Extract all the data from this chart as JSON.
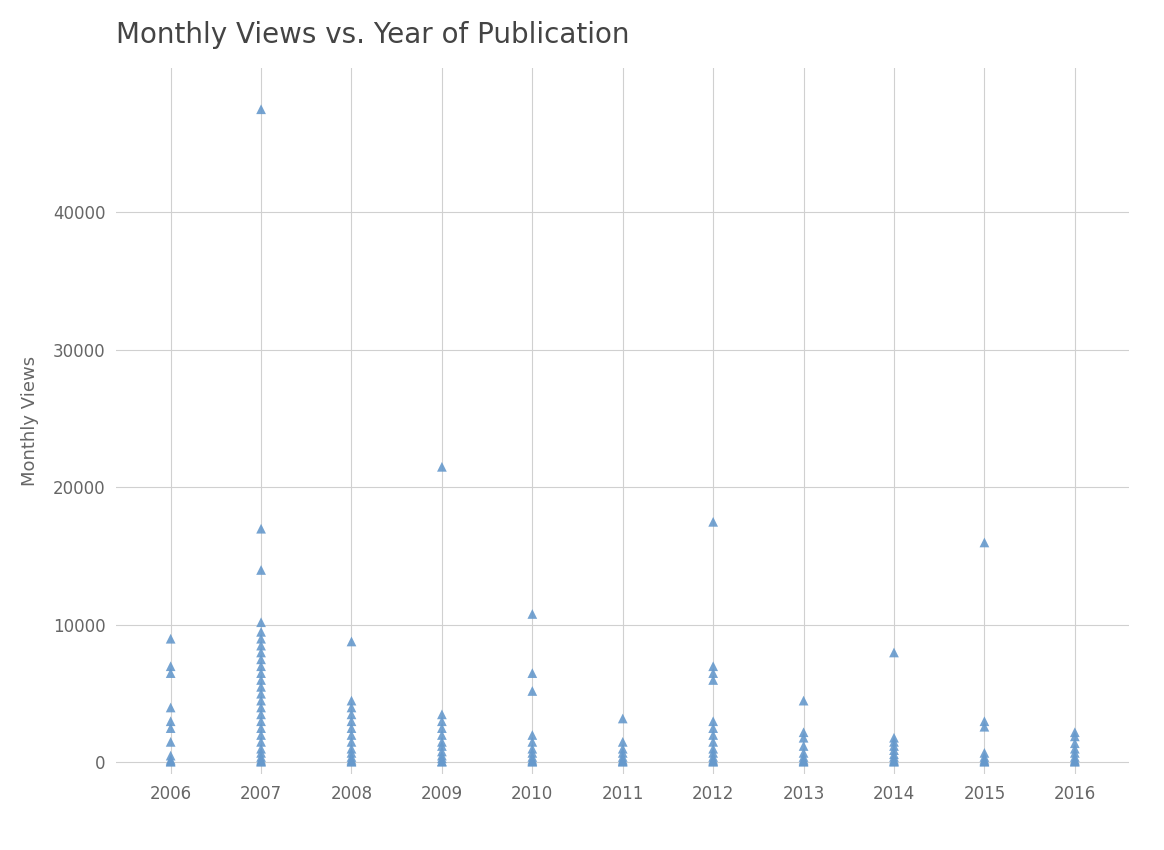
{
  "title": "Monthly Views vs. Year of Publication",
  "xlabel": "",
  "ylabel": "Monthly Views",
  "background_color": "#ffffff",
  "marker_color": "#6699cc",
  "marker": "^",
  "marker_size": 7,
  "grid_color": "#d0d0d0",
  "title_fontsize": 20,
  "label_fontsize": 13,
  "tick_fontsize": 12,
  "data": {
    "2006": [
      9000,
      7000,
      6500,
      4000,
      3000,
      2500,
      1500,
      500,
      200,
      100,
      50
    ],
    "2007": [
      47500,
      17000,
      14000,
      10200,
      9500,
      9000,
      8500,
      8000,
      7500,
      7000,
      6500,
      6000,
      5500,
      5000,
      4500,
      4000,
      3500,
      3000,
      2500,
      2000,
      1500,
      1000,
      700,
      400,
      200,
      100,
      50
    ],
    "2008": [
      8800,
      4500,
      4000,
      3500,
      3000,
      2500,
      2000,
      1500,
      1000,
      700,
      400,
      200,
      100,
      50
    ],
    "2009": [
      21500,
      3500,
      3000,
      2500,
      2000,
      1500,
      1200,
      800,
      500,
      300,
      100,
      50
    ],
    "2010": [
      10800,
      6500,
      5200,
      2000,
      1500,
      1000,
      700,
      400,
      200,
      100,
      50
    ],
    "2011": [
      3200,
      1500,
      1000,
      700,
      400,
      200,
      100,
      50
    ],
    "2012": [
      17500,
      7000,
      6500,
      6000,
      3000,
      2500,
      2000,
      1500,
      1000,
      700,
      400,
      200,
      100,
      50
    ],
    "2013": [
      4500,
      2200,
      1800,
      1200,
      700,
      400,
      200,
      100,
      50
    ],
    "2014": [
      8000,
      1800,
      1500,
      1200,
      900,
      600,
      400,
      200,
      100,
      50
    ],
    "2015": [
      16000,
      3000,
      2600,
      700,
      400,
      200,
      100,
      50
    ],
    "2016": [
      2200,
      1900,
      1400,
      1000,
      700,
      400,
      200,
      100,
      50
    ]
  },
  "xlim": [
    2005.4,
    2016.6
  ],
  "ylim": [
    -800,
    50500
  ],
  "yticks": [
    0,
    10000,
    20000,
    30000,
    40000
  ],
  "xticks": [
    2006,
    2007,
    2008,
    2009,
    2010,
    2011,
    2012,
    2013,
    2014,
    2015,
    2016
  ]
}
